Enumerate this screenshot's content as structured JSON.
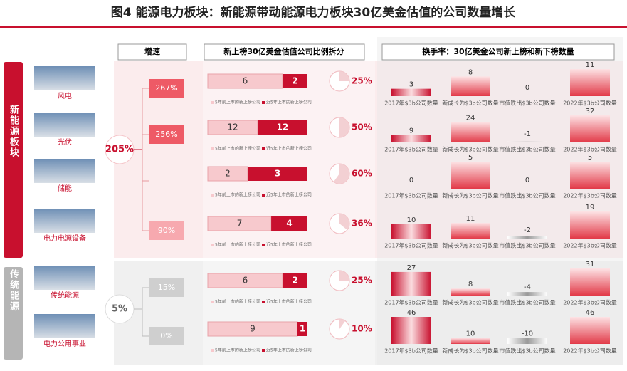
{
  "title": "图4  能源电力板块：新能源带动能源电力板块30亿美金估值的公司数量增长",
  "headers": [
    "增速",
    "新上榜30亿美金估值公司比例拆分",
    "换手率：30亿美金公司新上榜和新下榜数量"
  ],
  "legend": [
    "5年前上市的新上榜公司",
    "近5年上市的新上榜公司"
  ],
  "turnover_labels": [
    "2017年$3b公司数量",
    "新成长为$3b公司数量",
    "市值跌出$3b公司数量",
    "2022年$3b公司数量"
  ],
  "groups": [
    {
      "label": "新能源板块",
      "growth": "205%",
      "rows": [
        {
          "name": "风电",
          "growth": "267%",
          "old": 6,
          "new": 2,
          "ratio": 25,
          "ratio_label": "25%",
          "turnover": [
            3,
            8,
            0,
            11
          ]
        },
        {
          "name": "光伏",
          "growth": "256%",
          "old": 12,
          "new": 12,
          "ratio": 50,
          "ratio_label": "50%",
          "turnover": [
            9,
            24,
            -1,
            32
          ]
        },
        {
          "name": "储能",
          "growth": null,
          "old": 2,
          "new": 3,
          "ratio": 60,
          "ratio_label": "60%",
          "turnover": [
            0,
            5,
            0,
            5
          ]
        },
        {
          "name": "电力电源设备",
          "growth": "90%",
          "old": 7,
          "new": 4,
          "ratio": 36,
          "ratio_label": "36%",
          "turnover": [
            10,
            11,
            -2,
            19
          ]
        }
      ]
    },
    {
      "label": "传统能源",
      "growth": "5%",
      "rows": [
        {
          "name": "传统能源",
          "growth": "15%",
          "old": 6,
          "new": 2,
          "ratio": 25,
          "ratio_label": "25%",
          "turnover": [
            27,
            8,
            -4,
            31
          ]
        },
        {
          "name": "电力公用事业",
          "growth": "0%",
          "old": 9,
          "new": 1,
          "ratio": 10,
          "ratio_label": "10%",
          "turnover": [
            46,
            10,
            -10,
            46
          ]
        }
      ]
    }
  ]
}
